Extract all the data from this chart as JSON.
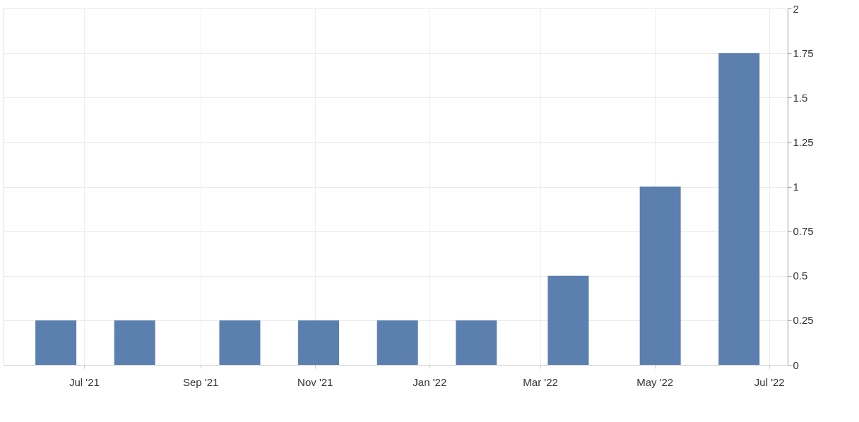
{
  "chart_data": {
    "type": "bar",
    "x": [
      "2021-06-16",
      "2021-07-28",
      "2021-09-22",
      "2021-11-03",
      "2021-12-15",
      "2022-01-26",
      "2022-03-16",
      "2022-05-04",
      "2022-06-15"
    ],
    "values": [
      0.25,
      0.25,
      0.25,
      0.25,
      0.25,
      0.25,
      0.5,
      1,
      1.75
    ],
    "color": "#5b7fae",
    "xlim": [
      "2021-05-21",
      "2022-07-09"
    ],
    "xticks": [
      {
        "value": "2021-07-01",
        "label": "Jul '21"
      },
      {
        "value": "2021-09-01",
        "label": "Sep '21"
      },
      {
        "value": "2021-11-01",
        "label": "Nov '21"
      },
      {
        "value": "2022-01-01",
        "label": "Jan '22"
      },
      {
        "value": "2022-03-01",
        "label": "Mar '22"
      },
      {
        "value": "2022-05-01",
        "label": "May '22"
      },
      {
        "value": "2022-07-01",
        "label": "Jul '22"
      }
    ],
    "ylim": [
      0,
      2
    ],
    "yticks": [
      0,
      0.25,
      0.5,
      0.75,
      1,
      1.25,
      1.5,
      1.75,
      2
    ],
    "grid": true
  }
}
